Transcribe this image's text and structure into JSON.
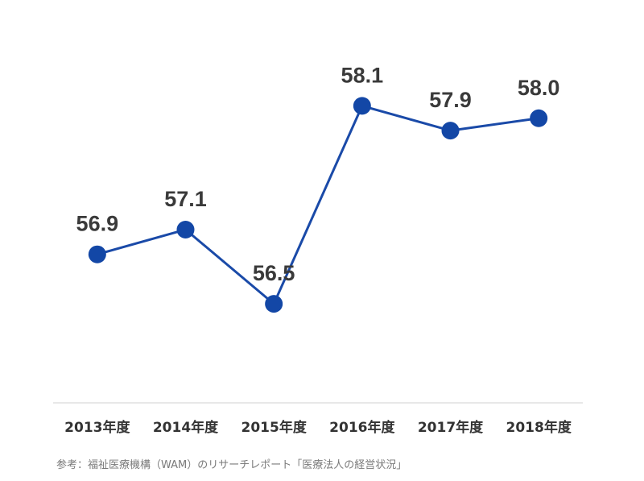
{
  "chart_data": {
    "type": "line",
    "categories": [
      "2013年度",
      "2014年度",
      "2015年度",
      "2016年度",
      "2017年度",
      "2018年度"
    ],
    "series": [
      {
        "values": [
          56.9,
          57.1,
          56.5,
          58.1,
          57.9,
          58.0
        ],
        "data_labels": [
          "56.9",
          "57.1",
          "56.5",
          "58.1",
          "57.9",
          "58.0"
        ]
      }
    ],
    "ylim": [
      55.7,
      58.35
    ],
    "grid": false,
    "legend": "none",
    "colors": {
      "line": "#1a4aa8",
      "marker": "#1347a6",
      "axis": "#d0d0d0",
      "label": "#3a3a3a",
      "tick": "#333333"
    }
  },
  "source": "参考：福祉医療機構（WAM）のリサーチレポート「医療法人の経営状況」"
}
